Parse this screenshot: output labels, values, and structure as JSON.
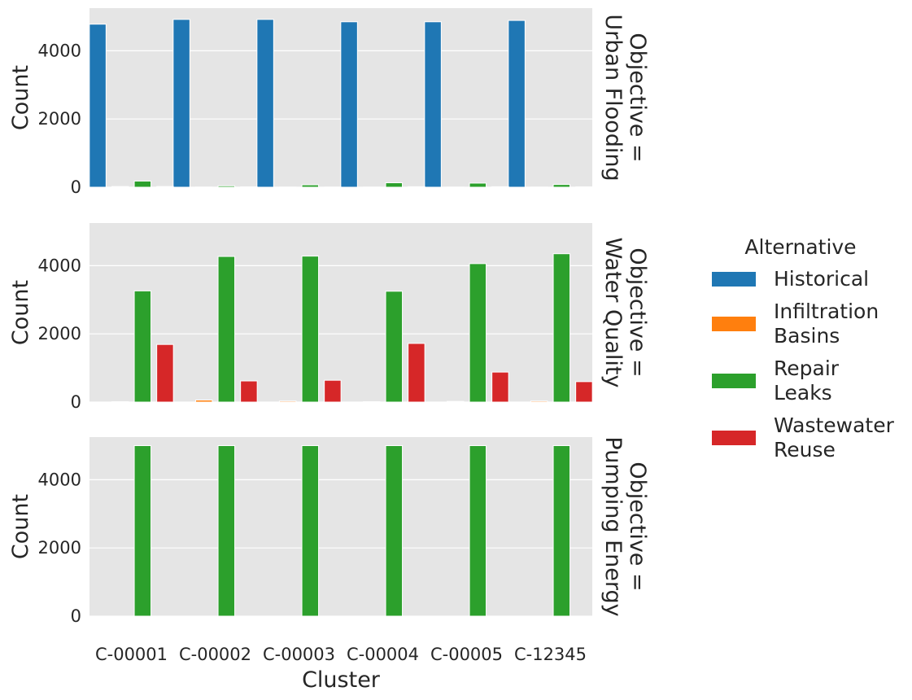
{
  "chart_data": {
    "type": "bar",
    "xlabel": "Cluster",
    "ylabel": "Count",
    "ylim": [
      0,
      5250
    ],
    "yticks": [
      0,
      2000,
      4000
    ],
    "grid": "horizontal",
    "categories": [
      "C-00001",
      "C-00002",
      "C-00003",
      "C-00004",
      "C-00005",
      "C-12345"
    ],
    "legend": {
      "title": "Alternative",
      "placement": "right",
      "entries": [
        {
          "lines": [
            "Historical"
          ],
          "color": "#1f77b4"
        },
        {
          "lines": [
            "Infiltration",
            "Basins"
          ],
          "color": "#ff7f0e"
        },
        {
          "lines": [
            "Repair",
            "Leaks"
          ],
          "color": "#2ca02c"
        },
        {
          "lines": [
            "Wastewater",
            "Reuse"
          ],
          "color": "#d62728"
        }
      ]
    },
    "panels": [
      {
        "title_lines": [
          "Objective =",
          "Urban Flooding"
        ],
        "series": [
          {
            "name": "Historical",
            "color": "#1f77b4",
            "values": [
              4780,
              4920,
              4920,
              4850,
              4850,
              4890
            ]
          },
          {
            "name": "Infiltration Basins",
            "color": "#ff7f0e",
            "values": [
              20,
              5,
              5,
              5,
              5,
              5
            ]
          },
          {
            "name": "Repair Leaks",
            "color": "#2ca02c",
            "values": [
              180,
              40,
              70,
              130,
              120,
              80
            ]
          },
          {
            "name": "Wastewater Reuse",
            "color": "#d62728",
            "values": [
              20,
              10,
              5,
              15,
              15,
              10
            ]
          }
        ]
      },
      {
        "title_lines": [
          "Objective =",
          "Water Quality"
        ],
        "series": [
          {
            "name": "Historical",
            "color": "#1f77b4",
            "values": [
              0,
              0,
              0,
              0,
              0,
              0
            ]
          },
          {
            "name": "Infiltration Basins",
            "color": "#ff7f0e",
            "values": [
              10,
              60,
              30,
              10,
              20,
              30
            ]
          },
          {
            "name": "Repair Leaks",
            "color": "#2ca02c",
            "values": [
              3260,
              4270,
              4280,
              3250,
              4060,
              4350
            ]
          },
          {
            "name": "Wastewater Reuse",
            "color": "#d62728",
            "values": [
              1690,
              620,
              640,
              1720,
              880,
              600
            ]
          }
        ]
      },
      {
        "title_lines": [
          "Objective =",
          "Pumping Energy"
        ],
        "series": [
          {
            "name": "Historical",
            "color": "#1f77b4",
            "values": [
              0,
              0,
              0,
              0,
              0,
              0
            ]
          },
          {
            "name": "Infiltration Basins",
            "color": "#ff7f0e",
            "values": [
              0,
              0,
              0,
              0,
              0,
              0
            ]
          },
          {
            "name": "Repair Leaks",
            "color": "#2ca02c",
            "values": [
              5000,
              5000,
              5000,
              5000,
              5000,
              5000
            ]
          },
          {
            "name": "Wastewater Reuse",
            "color": "#d62728",
            "values": [
              0,
              0,
              0,
              0,
              0,
              0
            ]
          }
        ]
      }
    ]
  }
}
